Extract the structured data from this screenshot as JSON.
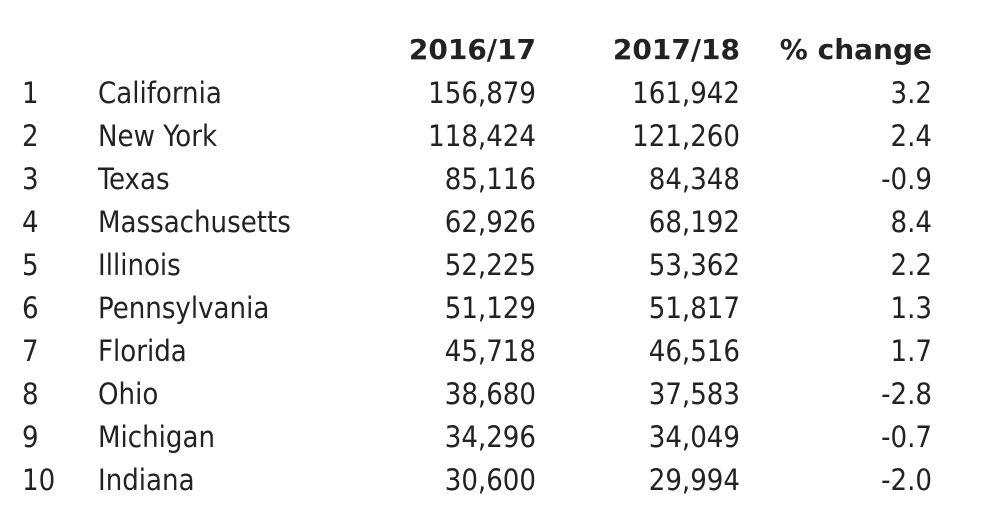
{
  "chart_data": {
    "type": "table",
    "columns": [
      "",
      "",
      "2016/17",
      "2017/18",
      "% change"
    ],
    "rows": [
      {
        "rank": "1",
        "state": "California",
        "y2016_17": "156,879",
        "y2017_18": "161,942",
        "pct_change": "3.2"
      },
      {
        "rank": "2",
        "state": "New York",
        "y2016_17": "118,424",
        "y2017_18": "121,260",
        "pct_change": "2.4"
      },
      {
        "rank": "3",
        "state": "Texas",
        "y2016_17": "85,116",
        "y2017_18": "84,348",
        "pct_change": "-0.9"
      },
      {
        "rank": "4",
        "state": "Massachusetts",
        "y2016_17": "62,926",
        "y2017_18": "68,192",
        "pct_change": "8.4"
      },
      {
        "rank": "5",
        "state": "Illinois",
        "y2016_17": "52,225",
        "y2017_18": "53,362",
        "pct_change": "2.2"
      },
      {
        "rank": "6",
        "state": "Pennsylvania",
        "y2016_17": "51,129",
        "y2017_18": "51,817",
        "pct_change": "1.3"
      },
      {
        "rank": "7",
        "state": "Florida",
        "y2016_17": "45,718",
        "y2017_18": "46,516",
        "pct_change": "1.7"
      },
      {
        "rank": "8",
        "state": "Ohio",
        "y2016_17": "38,680",
        "y2017_18": "37,583",
        "pct_change": "-2.8"
      },
      {
        "rank": "9",
        "state": "Michigan",
        "y2016_17": "34,296",
        "y2017_18": "34,049",
        "pct_change": "-0.7"
      },
      {
        "rank": "10",
        "state": "Indiana",
        "y2016_17": "30,600",
        "y2017_18": "29,994",
        "pct_change": "-2.0"
      }
    ]
  },
  "colors": {
    "text": "#222222",
    "background": "#ffffff"
  }
}
